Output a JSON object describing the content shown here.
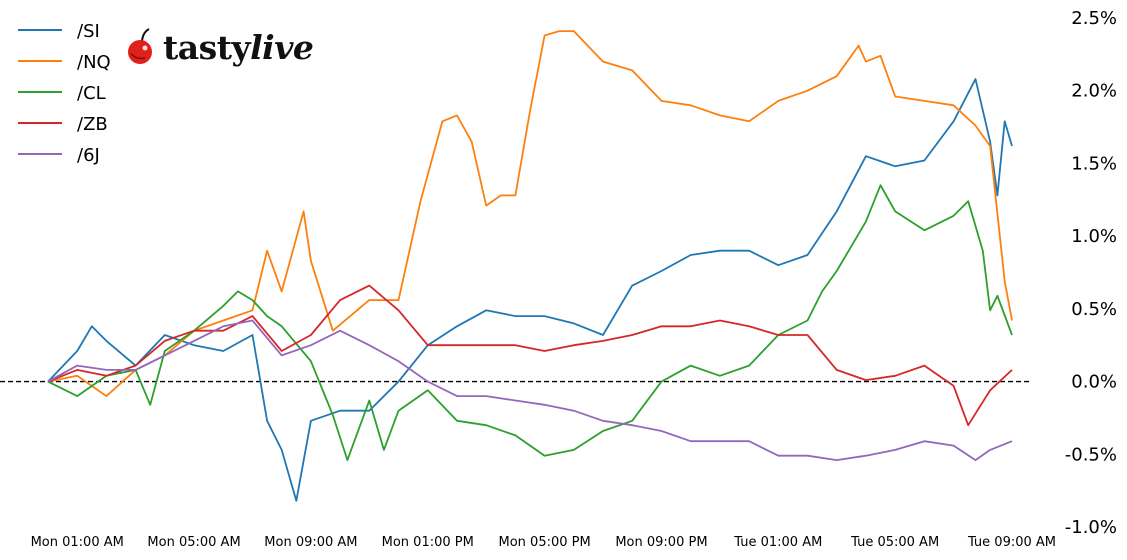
{
  "logo": {
    "text_main": "tasty",
    "text_italic": "live",
    "cherry_color": "#e0201b"
  },
  "chart_data": {
    "type": "line",
    "title": "",
    "xlabel": "",
    "ylabel": "",
    "x_ticks": [
      "Mon 01:00 AM",
      "Mon 05:00 AM",
      "Mon 09:00 AM",
      "Mon 01:00 PM",
      "Mon 05:00 PM",
      "Mon 09:00 PM",
      "Tue 01:00 AM",
      "Tue 05:00 AM",
      "Tue 09:00 AM"
    ],
    "x_tick_times": [
      "Mon 01:00",
      "Mon 05:00",
      "Mon 09:00",
      "Mon 13:00",
      "Mon 17:00",
      "Mon 21:00",
      "Tue 01:00",
      "Tue 05:00",
      "Tue 09:00"
    ],
    "xlim": [
      "Mon 00:00",
      "Tue 09:00"
    ],
    "y_ticks": [
      "2.5%",
      "2.0%",
      "1.5%",
      "1.0%",
      "0.5%",
      "0.0%",
      "-0.5%",
      "-1.0%"
    ],
    "y_tick_values": [
      2.5,
      2.0,
      1.5,
      1.0,
      0.5,
      0.0,
      -0.5,
      -1.0
    ],
    "ylim": [
      -1.0,
      2.5
    ],
    "y_axis_side": "right",
    "y_unit": "%",
    "grid": false,
    "reference_line": {
      "y": 0,
      "style": "dashed",
      "color": "#000000"
    },
    "legend_placement": "top-left",
    "series": [
      {
        "name": "/SI",
        "color": "#1f77b4",
        "points": [
          [
            "Mon 00:00",
            0
          ],
          [
            "Mon 01:00",
            0.21
          ],
          [
            "Mon 01:30",
            0.38
          ],
          [
            "Mon 02:00",
            0.28
          ],
          [
            "Mon 03:00",
            0.11
          ],
          [
            "Mon 04:00",
            0.32
          ],
          [
            "Mon 05:00",
            0.25
          ],
          [
            "Mon 06:00",
            0.21
          ],
          [
            "Mon 07:00",
            0.32
          ],
          [
            "Mon 07:30",
            -0.27
          ],
          [
            "Mon 08:00",
            -0.47
          ],
          [
            "Mon 08:30",
            -0.82
          ],
          [
            "Mon 09:00",
            -0.27
          ],
          [
            "Mon 10:00",
            -0.2
          ],
          [
            "Mon 11:00",
            -0.2
          ],
          [
            "Mon 12:00",
            0
          ],
          [
            "Mon 13:00",
            0.25
          ],
          [
            "Mon 14:00",
            0.38
          ],
          [
            "Mon 15:00",
            0.49
          ],
          [
            "Mon 16:00",
            0.45
          ],
          [
            "Mon 17:00",
            0.45
          ],
          [
            "Mon 18:00",
            0.4
          ],
          [
            "Mon 19:00",
            0.32
          ],
          [
            "Mon 20:00",
            0.66
          ],
          [
            "Mon 21:00",
            0.76
          ],
          [
            "Mon 22:00",
            0.87
          ],
          [
            "Mon 23:00",
            0.9
          ],
          [
            "Tue 00:00",
            0.9
          ],
          [
            "Tue 01:00",
            0.8
          ],
          [
            "Tue 02:00",
            0.87
          ],
          [
            "Tue 03:00",
            1.17
          ],
          [
            "Tue 04:00",
            1.55
          ],
          [
            "Tue 05:00",
            1.48
          ],
          [
            "Tue 06:00",
            1.52
          ],
          [
            "Tue 07:00",
            1.79
          ],
          [
            "Tue 07:45",
            2.08
          ],
          [
            "Tue 08:15",
            1.65
          ],
          [
            "Tue 08:30",
            1.28
          ],
          [
            "Tue 08:45",
            1.79
          ],
          [
            "Tue 09:00",
            1.62
          ]
        ]
      },
      {
        "name": "/NQ",
        "color": "#ff7f0e",
        "points": [
          [
            "Mon 00:00",
            0
          ],
          [
            "Mon 01:00",
            0.04
          ],
          [
            "Mon 02:00",
            -0.1
          ],
          [
            "Mon 03:00",
            0.08
          ],
          [
            "Mon 04:00",
            0.18
          ],
          [
            "Mon 05:00",
            0.35
          ],
          [
            "Mon 06:00",
            0.42
          ],
          [
            "Mon 07:00",
            0.49
          ],
          [
            "Mon 07:30",
            0.9
          ],
          [
            "Mon 08:00",
            0.62
          ],
          [
            "Mon 08:45",
            1.17
          ],
          [
            "Mon 09:00",
            0.83
          ],
          [
            "Mon 09:45",
            0.35
          ],
          [
            "Mon 11:00",
            0.56
          ],
          [
            "Mon 12:00",
            0.56
          ],
          [
            "Mon 12:45",
            1.24
          ],
          [
            "Mon 13:30",
            1.79
          ],
          [
            "Mon 14:00",
            1.83
          ],
          [
            "Mon 14:30",
            1.65
          ],
          [
            "Mon 15:00",
            1.21
          ],
          [
            "Mon 15:30",
            1.28
          ],
          [
            "Mon 16:00",
            1.28
          ],
          [
            "Mon 16:30",
            1.86
          ],
          [
            "Mon 17:00",
            2.38
          ],
          [
            "Mon 17:30",
            2.41
          ],
          [
            "Mon 18:00",
            2.41
          ],
          [
            "Mon 19:00",
            2.2
          ],
          [
            "Mon 20:00",
            2.14
          ],
          [
            "Mon 21:00",
            1.93
          ],
          [
            "Mon 22:00",
            1.9
          ],
          [
            "Mon 23:00",
            1.83
          ],
          [
            "Tue 00:00",
            1.79
          ],
          [
            "Tue 01:00",
            1.93
          ],
          [
            "Tue 02:00",
            2.0
          ],
          [
            "Tue 03:00",
            2.1
          ],
          [
            "Tue 03:45",
            2.31
          ],
          [
            "Tue 04:00",
            2.2
          ],
          [
            "Tue 04:30",
            2.24
          ],
          [
            "Tue 05:00",
            1.96
          ],
          [
            "Tue 06:00",
            1.93
          ],
          [
            "Tue 07:00",
            1.9
          ],
          [
            "Tue 07:45",
            1.76
          ],
          [
            "Tue 08:15",
            1.62
          ],
          [
            "Tue 08:45",
            0.69
          ],
          [
            "Tue 09:00",
            0.42
          ]
        ]
      },
      {
        "name": "/CL",
        "color": "#2ca02c",
        "points": [
          [
            "Mon 00:00",
            0
          ],
          [
            "Mon 01:00",
            -0.1
          ],
          [
            "Mon 02:00",
            0.04
          ],
          [
            "Mon 03:00",
            0.08
          ],
          [
            "Mon 03:30",
            -0.16
          ],
          [
            "Mon 04:00",
            0.21
          ],
          [
            "Mon 05:00",
            0.35
          ],
          [
            "Mon 06:00",
            0.52
          ],
          [
            "Mon 06:30",
            0.62
          ],
          [
            "Mon 07:00",
            0.56
          ],
          [
            "Mon 07:30",
            0.45
          ],
          [
            "Mon 08:00",
            0.38
          ],
          [
            "Mon 09:00",
            0.14
          ],
          [
            "Mon 09:45",
            -0.23
          ],
          [
            "Mon 10:15",
            -0.54
          ],
          [
            "Mon 11:00",
            -0.13
          ],
          [
            "Mon 11:30",
            -0.47
          ],
          [
            "Mon 12:00",
            -0.2
          ],
          [
            "Mon 13:00",
            -0.06
          ],
          [
            "Mon 14:00",
            -0.27
          ],
          [
            "Mon 15:00",
            -0.3
          ],
          [
            "Mon 16:00",
            -0.37
          ],
          [
            "Mon 17:00",
            -0.51
          ],
          [
            "Mon 18:00",
            -0.47
          ],
          [
            "Mon 19:00",
            -0.34
          ],
          [
            "Mon 20:00",
            -0.27
          ],
          [
            "Mon 21:00",
            0
          ],
          [
            "Mon 22:00",
            0.11
          ],
          [
            "Mon 23:00",
            0.04
          ],
          [
            "Tue 00:00",
            0.11
          ],
          [
            "Tue 01:00",
            0.32
          ],
          [
            "Tue 02:00",
            0.42
          ],
          [
            "Tue 02:30",
            0.62
          ],
          [
            "Tue 03:00",
            0.76
          ],
          [
            "Tue 04:00",
            1.1
          ],
          [
            "Tue 04:30",
            1.35
          ],
          [
            "Tue 05:00",
            1.17
          ],
          [
            "Tue 06:00",
            1.04
          ],
          [
            "Tue 07:00",
            1.14
          ],
          [
            "Tue 07:30",
            1.24
          ],
          [
            "Tue 08:00",
            0.9
          ],
          [
            "Tue 08:15",
            0.49
          ],
          [
            "Tue 08:30",
            0.59
          ],
          [
            "Tue 09:00",
            0.32
          ]
        ]
      },
      {
        "name": "/ZB",
        "color": "#d62728",
        "points": [
          [
            "Mon 00:00",
            0
          ],
          [
            "Mon 01:00",
            0.08
          ],
          [
            "Mon 02:00",
            0.04
          ],
          [
            "Mon 03:00",
            0.11
          ],
          [
            "Mon 04:00",
            0.28
          ],
          [
            "Mon 05:00",
            0.35
          ],
          [
            "Mon 06:00",
            0.35
          ],
          [
            "Mon 07:00",
            0.45
          ],
          [
            "Mon 08:00",
            0.21
          ],
          [
            "Mon 09:00",
            0.32
          ],
          [
            "Mon 10:00",
            0.56
          ],
          [
            "Mon 11:00",
            0.66
          ],
          [
            "Mon 12:00",
            0.49
          ],
          [
            "Mon 13:00",
            0.25
          ],
          [
            "Mon 14:00",
            0.25
          ],
          [
            "Mon 15:00",
            0.25
          ],
          [
            "Mon 16:00",
            0.25
          ],
          [
            "Mon 17:00",
            0.21
          ],
          [
            "Mon 18:00",
            0.25
          ],
          [
            "Mon 19:00",
            0.28
          ],
          [
            "Mon 20:00",
            0.32
          ],
          [
            "Mon 21:00",
            0.38
          ],
          [
            "Mon 22:00",
            0.38
          ],
          [
            "Mon 23:00",
            0.42
          ],
          [
            "Tue 00:00",
            0.38
          ],
          [
            "Tue 01:00",
            0.32
          ],
          [
            "Tue 02:00",
            0.32
          ],
          [
            "Tue 03:00",
            0.08
          ],
          [
            "Tue 04:00",
            0.01
          ],
          [
            "Tue 05:00",
            0.04
          ],
          [
            "Tue 06:00",
            0.11
          ],
          [
            "Tue 07:00",
            -0.03
          ],
          [
            "Tue 07:30",
            -0.3
          ],
          [
            "Tue 08:15",
            -0.06
          ],
          [
            "Tue 09:00",
            0.08
          ]
        ]
      },
      {
        "name": "/6J",
        "color": "#9467bd",
        "points": [
          [
            "Mon 00:00",
            0
          ],
          [
            "Mon 01:00",
            0.11
          ],
          [
            "Mon 02:00",
            0.08
          ],
          [
            "Mon 03:00",
            0.08
          ],
          [
            "Mon 04:00",
            0.18
          ],
          [
            "Mon 05:00",
            0.28
          ],
          [
            "Mon 06:00",
            0.38
          ],
          [
            "Mon 07:00",
            0.42
          ],
          [
            "Mon 08:00",
            0.18
          ],
          [
            "Mon 09:00",
            0.25
          ],
          [
            "Mon 10:00",
            0.35
          ],
          [
            "Mon 11:00",
            0.25
          ],
          [
            "Mon 12:00",
            0.14
          ],
          [
            "Mon 13:00",
            0
          ],
          [
            "Mon 14:00",
            -0.1
          ],
          [
            "Mon 15:00",
            -0.1
          ],
          [
            "Mon 16:00",
            -0.13
          ],
          [
            "Mon 17:00",
            -0.16
          ],
          [
            "Mon 18:00",
            -0.2
          ],
          [
            "Mon 19:00",
            -0.27
          ],
          [
            "Mon 20:00",
            -0.3
          ],
          [
            "Mon 21:00",
            -0.34
          ],
          [
            "Mon 22:00",
            -0.41
          ],
          [
            "Mon 23:00",
            -0.41
          ],
          [
            "Tue 00:00",
            -0.41
          ],
          [
            "Tue 01:00",
            -0.51
          ],
          [
            "Tue 02:00",
            -0.51
          ],
          [
            "Tue 03:00",
            -0.54
          ],
          [
            "Tue 04:00",
            -0.51
          ],
          [
            "Tue 05:00",
            -0.47
          ],
          [
            "Tue 06:00",
            -0.41
          ],
          [
            "Tue 07:00",
            -0.44
          ],
          [
            "Tue 07:45",
            -0.54
          ],
          [
            "Tue 08:15",
            -0.47
          ],
          [
            "Tue 09:00",
            -0.41
          ]
        ]
      }
    ]
  }
}
